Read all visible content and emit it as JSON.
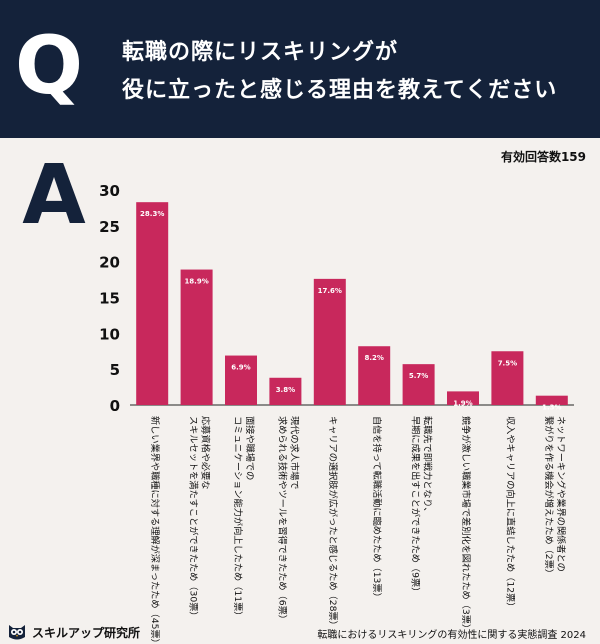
{
  "header": {
    "q_letter": "Q",
    "question_line1": "転職の際にリスキリングが",
    "question_line2": "役に立ったと感じる理由を教えてください"
  },
  "answer_letter": "A",
  "valid_count_label": "有効回答数159",
  "chart_data": {
    "type": "bar",
    "title": "",
    "xlabel": "",
    "ylabel": "",
    "ylim": [
      0,
      30
    ],
    "yticks": [
      0,
      5,
      10,
      15,
      20,
      25,
      30
    ],
    "grid": false,
    "bar_color": "#c8285c",
    "categories": [
      "新しい業界や職種に対する理解が深まったため（45票）",
      "応募資格や必要なスキルセットを満たすことができたため（30票）",
      "面接や職場でのコミュニケーション能力が向上したため（11票）",
      "現代の求人市場で求められる技術やツールを習得できたため（6票）",
      "キャリアの選択肢が広がったと感じるため（28票）",
      "自信を持って転職活動に臨めたため（13票）",
      "転職先で即戦力となり、早期に成果を出すことができたため（9票）",
      "競争が激しい職業市場で差別化を図れたため（3票）",
      "収入やキャリアの向上に直結したため（12票）",
      "ネットワーキングや業界の関係者との繋がりを作る機会が増えたため（2票）"
    ],
    "category_lines": [
      [
        "新しい業界や職種に対する理解が深まったため（45票）"
      ],
      [
        "応募資格や必要な",
        "スキルセットを満たすことができたため（30票）"
      ],
      [
        "面接や職場での",
        "コミュニケーション能力が向上したため（11票）"
      ],
      [
        "現代の求人市場で",
        "求められる技術やツールを習得できたため（6票）"
      ],
      [
        "キャリアの選択肢が広がったと感じるため（28票）"
      ],
      [
        "自信を持って転職活動に臨めたため（13票）"
      ],
      [
        "転職先で即戦力となり、",
        "早期に成果を出すことができたため（9票）"
      ],
      [
        "競争が激しい職業市場で差別化を図れたため（3票）"
      ],
      [
        "収入やキャリアの向上に直結したため（12票）"
      ],
      [
        "ネットワーキングや業界の関係者との",
        "繋がりを作る機会が増えたため（2票）"
      ]
    ],
    "values": [
      28.3,
      18.9,
      6.9,
      3.8,
      17.6,
      8.2,
      5.7,
      1.9,
      7.5,
      1.3
    ],
    "data_labels": [
      "28.3%",
      "18.9%",
      "6.9%",
      "3.8%",
      "17.6%",
      "8.2%",
      "5.7%",
      "1.9%",
      "7.5%",
      "1.3%"
    ]
  },
  "footer": {
    "logo_text": "スキルアップ研究所",
    "logo_icon": "owl-icon",
    "source": "転職におけるリスキリングの有効性に関する実態調査 2024"
  }
}
